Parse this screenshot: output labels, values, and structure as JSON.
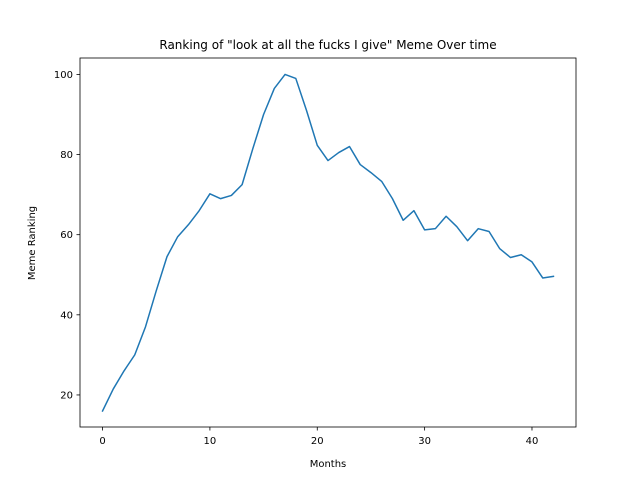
{
  "chart_data": {
    "type": "line",
    "title": "Ranking of \"look at all the fucks I give\" Meme Over time",
    "xlabel": "Months",
    "ylabel": "Meme Ranking",
    "xlim": [
      -2.1,
      44.1
    ],
    "ylim": [
      12.0,
      104.1
    ],
    "xticks": [
      0,
      10,
      20,
      30,
      40
    ],
    "yticks": [
      20,
      40,
      60,
      80,
      100
    ],
    "grid": false,
    "legend": "none",
    "series": [
      {
        "color": "#1f77b4",
        "x": [
          0,
          1,
          2,
          3,
          4,
          5,
          6,
          7,
          8,
          9,
          10,
          11,
          12,
          13,
          14,
          15,
          16,
          17,
          18,
          19,
          20,
          21,
          22,
          23,
          24,
          25,
          26,
          27,
          28,
          29,
          30,
          31,
          32,
          33,
          34,
          35,
          36,
          37,
          38,
          39,
          40,
          41,
          42
        ],
        "y": [
          16,
          21.5,
          26,
          30,
          37,
          46,
          54.5,
          59.5,
          62.5,
          66,
          70.2,
          69,
          69.8,
          72.5,
          81.5,
          90,
          96.5,
          100,
          99,
          91,
          82.3,
          78.5,
          80.5,
          82,
          77.5,
          75.5,
          73.3,
          69,
          63.6,
          66,
          61.2,
          61.5,
          64.6,
          62,
          58.5,
          61.5,
          60.8,
          56.5,
          54.3,
          55,
          53.2,
          49.2,
          49.6
        ]
      }
    ]
  }
}
